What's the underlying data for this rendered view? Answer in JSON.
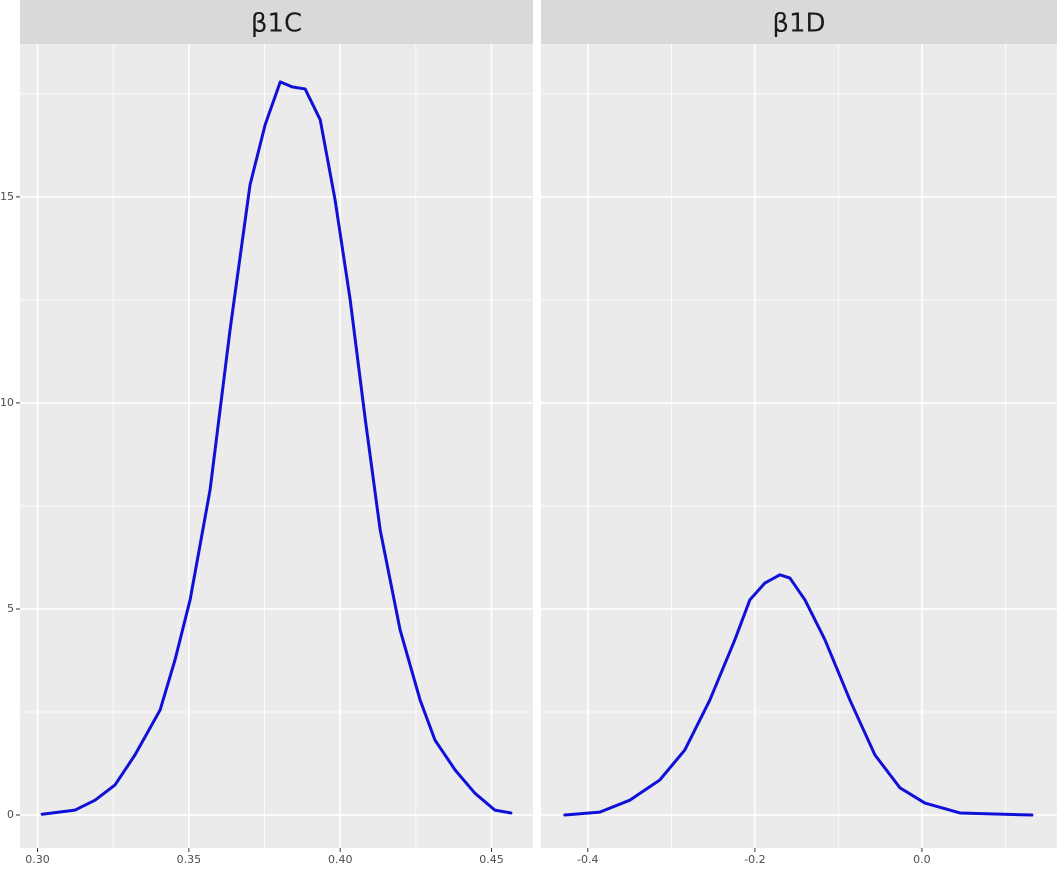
{
  "chart_data": [
    {
      "type": "density",
      "title": "β1C",
      "color": "#1010d8",
      "grid": true,
      "x": [
        0.3015,
        0.3124,
        0.319,
        0.3256,
        0.3322,
        0.3405,
        0.3454,
        0.3504,
        0.357,
        0.3636,
        0.3702,
        0.3752,
        0.3802,
        0.3841,
        0.3884,
        0.3934,
        0.3983,
        0.4033,
        0.4083,
        0.4132,
        0.4198,
        0.4264,
        0.4313,
        0.438,
        0.4445,
        0.4511,
        0.4564
      ],
      "values": [
        0.02,
        0.12,
        0.36,
        0.73,
        1.46,
        2.55,
        3.76,
        5.22,
        7.89,
        11.77,
        15.29,
        16.75,
        17.79,
        17.67,
        17.62,
        16.87,
        14.93,
        12.5,
        9.59,
        6.92,
        4.49,
        2.79,
        1.82,
        1.09,
        0.53,
        0.12,
        0.05
      ],
      "xlim": [
        0.2942,
        0.4637
      ],
      "ylim": [
        -0.8,
        18.71
      ],
      "xticks": [
        {
          "value": 0.3,
          "label": "0.30"
        },
        0.35,
        {
          "value": 0.4,
          "label": "0.40"
        },
        0.45
      ],
      "minor_xticks": [
        0.325,
        0.375,
        0.425
      ],
      "yticks": [
        0,
        5,
        10,
        15
      ],
      "minor_yticks": [
        2.5,
        7.5,
        12.5,
        17.5
      ]
    },
    {
      "type": "density",
      "title": "β1D",
      "color": "#1010d8",
      "grid": true,
      "x": [
        -0.4275,
        -0.3856,
        -0.3497,
        -0.3138,
        -0.2838,
        -0.2539,
        -0.224,
        -0.206,
        -0.188,
        -0.17,
        -0.158,
        -0.14,
        -0.116,
        -0.0862,
        -0.0563,
        -0.0263,
        0.0036,
        0.0455,
        0.1317
      ],
      "values": [
        0,
        0.07,
        0.36,
        0.85,
        1.58,
        2.79,
        4.25,
        5.22,
        5.63,
        5.83,
        5.75,
        5.22,
        4.25,
        2.79,
        1.46,
        0.66,
        0.29,
        0.05,
        0
      ],
      "xlim": [
        -0.456,
        0.1617
      ],
      "ylim": [
        -0.8,
        18.71
      ],
      "xticks": [
        -0.4,
        -0.2,
        {
          "value": 0,
          "label": "0.0"
        }
      ],
      "minor_xticks": [
        -0.3,
        -0.1,
        0.1
      ],
      "yticks": [
        0,
        5,
        10,
        15
      ],
      "minor_yticks": [
        2.5,
        7.5,
        12.5,
        17.5
      ]
    }
  ]
}
